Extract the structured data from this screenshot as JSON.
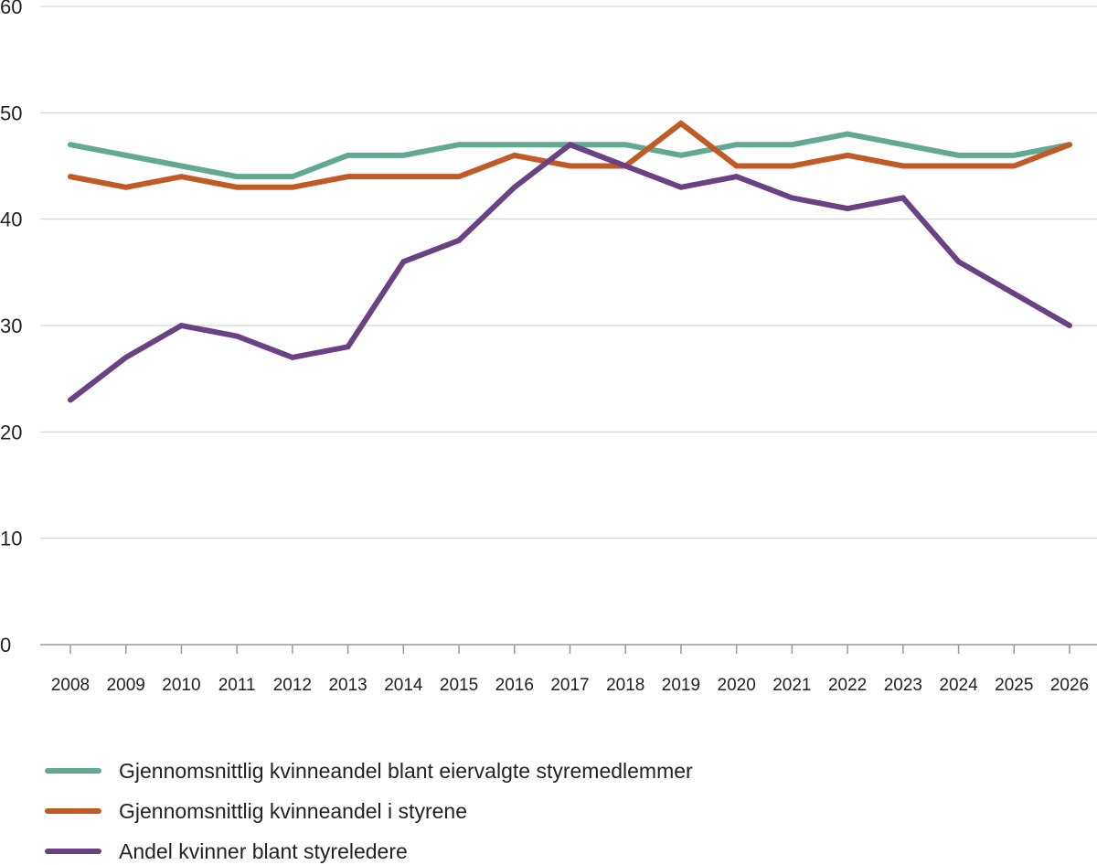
{
  "chart_data": {
    "type": "line",
    "title": "",
    "xlabel": "",
    "ylabel": "",
    "x": [
      "2008",
      "2009",
      "2010",
      "2011",
      "2012",
      "2013",
      "2014",
      "2015",
      "2016",
      "2017",
      "2018",
      "2019",
      "2020",
      "2021",
      "2022",
      "2023",
      "2024",
      "2025",
      "2026"
    ],
    "ylim": [
      0,
      60
    ],
    "yticks": [
      "0",
      "10",
      "20",
      "30",
      "40",
      "50",
      "60"
    ],
    "grid": true,
    "legend_position": "bottom-left",
    "series": [
      {
        "name": "Gjennomsnittlig kvinneandel blant eiervalgte styremedlemmer",
        "color": "#62a994",
        "values": [
          47,
          46,
          45,
          44,
          44,
          46,
          46,
          47,
          47,
          47,
          47,
          46,
          47,
          47,
          48,
          47,
          46,
          46,
          47
        ]
      },
      {
        "name": "Gjennomsnittlig kvinneandel i styrene",
        "color": "#c05a27",
        "values": [
          44,
          43,
          44,
          43,
          43,
          44,
          44,
          44,
          46,
          45,
          45,
          49,
          45,
          45,
          46,
          45,
          45,
          45,
          47
        ]
      },
      {
        "name": "Andel kvinner blant styreledere",
        "color": "#6a4283",
        "values": [
          23,
          27,
          30,
          29,
          27,
          28,
          36,
          38,
          43,
          47,
          45,
          43,
          44,
          42,
          41,
          42,
          36,
          33,
          30
        ]
      }
    ]
  }
}
